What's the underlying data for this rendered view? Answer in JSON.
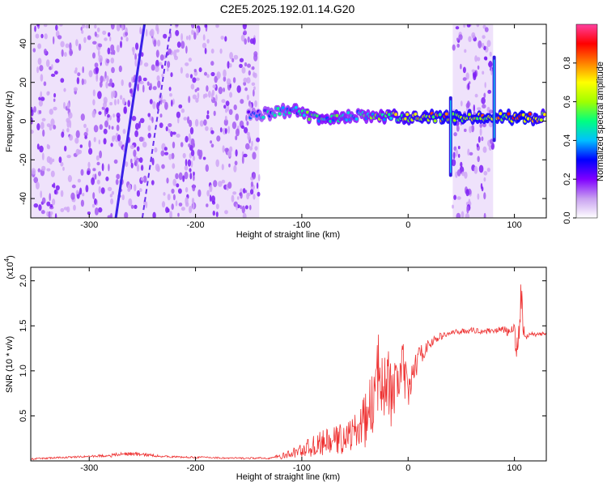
{
  "figure_title": "C2E5.2025.192.01.14.G20",
  "chart_data": [
    {
      "type": "heatmap",
      "xlabel": "Height of straight line (km)",
      "ylabel": "Frequency (Hz)",
      "xlim": [
        -355,
        130
      ],
      "ylim": [
        -50,
        50
      ],
      "xticks": [
        -300,
        -200,
        -100,
        0,
        100
      ],
      "xtick_labels": [
        "-300",
        "-200",
        "-100",
        "0",
        "100"
      ],
      "yticks": [
        -40,
        -20,
        0,
        20,
        40
      ],
      "ytick_labels": [
        "-40",
        "-20",
        "0",
        "20",
        "40"
      ],
      "colorbar": {
        "label": "Normalized spectral amplitude",
        "range": [
          0,
          1
        ],
        "ticks": [
          0.0,
          0.2,
          0.4,
          0.6,
          0.8
        ],
        "tick_labels": [
          "0.0",
          "0.2",
          "0.4",
          "0.6",
          "0.8"
        ],
        "colors": [
          "#ffffff",
          "#c8a0f0",
          "#8000ff",
          "#0000ff",
          "#00c0ff",
          "#00ff80",
          "#a0ff00",
          "#ffff00",
          "#ff8000",
          "#ff0000",
          "#ff40a0"
        ]
      },
      "noise_regions": [
        {
          "x_from": -355,
          "x_to": -140,
          "level": 0.12
        },
        {
          "x_from": 42,
          "x_to": 80,
          "level": 0.12
        }
      ],
      "signal_track": [
        {
          "x": -150,
          "f": 3,
          "amp": 0.35
        },
        {
          "x": -130,
          "f": 4,
          "amp": 0.45
        },
        {
          "x": -110,
          "f": 6,
          "amp": 0.5
        },
        {
          "x": -90,
          "f": 2,
          "amp": 0.55
        },
        {
          "x": -70,
          "f": 1,
          "amp": 0.55
        },
        {
          "x": -50,
          "f": 3,
          "amp": 0.5
        },
        {
          "x": -30,
          "f": 3,
          "amp": 0.55
        },
        {
          "x": -10,
          "f": 2,
          "amp": 0.7
        },
        {
          "x": 10,
          "f": 2,
          "amp": 0.75
        },
        {
          "x": 30,
          "f": 2,
          "amp": 0.8
        },
        {
          "x": 90,
          "f": 2,
          "amp": 0.8
        },
        {
          "x": 110,
          "f": 2,
          "amp": 0.85
        },
        {
          "x": 130,
          "f": 2,
          "amp": 0.7
        }
      ],
      "diagonal_streaks": [
        {
          "x1": -275,
          "f1": -50,
          "x2": -248,
          "f2": 50,
          "amp": 0.3
        }
      ],
      "vertical_spikes": [
        {
          "x": 40,
          "f_from": -28,
          "f_to": 12
        },
        {
          "x": 81,
          "f_from": -10,
          "f_to": 33
        }
      ]
    },
    {
      "type": "line",
      "xlabel": "Height of straight line (km)",
      "ylabel": "SNR (10 * v/v)",
      "y_multiplier": "(x10",
      "y_multiplier_exp": "4",
      "y_multiplier_close": ")",
      "xlim": [
        -355,
        130
      ],
      "ylim": [
        0,
        2.15
      ],
      "xticks": [
        -300,
        -200,
        -100,
        0,
        100
      ],
      "xtick_labels": [
        "-300",
        "-200",
        "-100",
        "0",
        "100"
      ],
      "yticks": [
        0.5,
        1.0,
        1.5,
        2.0
      ],
      "ytick_labels": [
        "0.5",
        "1.0",
        "1.5",
        "2.0"
      ],
      "color": "#ee3333",
      "series": [
        {
          "x": [
            -355,
            -340,
            -320,
            -300,
            -280,
            -265,
            -250,
            -230,
            -210,
            -190,
            -170,
            -150,
            -130,
            -115,
            -100,
            -90,
            -80,
            -70,
            -60,
            -50,
            -40,
            -35,
            -30,
            -25,
            -20,
            -15,
            -10,
            -5,
            0,
            5,
            10,
            20,
            30,
            40,
            50,
            60,
            70,
            80,
            90,
            95,
            100,
            103,
            106,
            108,
            110,
            112,
            115,
            120,
            125,
            130
          ],
          "y": [
            0.02,
            0.03,
            0.04,
            0.05,
            0.06,
            0.08,
            0.07,
            0.05,
            0.04,
            0.04,
            0.03,
            0.03,
            0.03,
            0.06,
            0.12,
            0.16,
            0.2,
            0.22,
            0.26,
            0.32,
            0.45,
            0.6,
            0.8,
            1.1,
            0.95,
            0.65,
            0.9,
            1.05,
            0.7,
            1.0,
            1.15,
            1.3,
            1.38,
            1.42,
            1.44,
            1.45,
            1.44,
            1.45,
            1.46,
            1.42,
            1.45,
            1.2,
            1.9,
            1.5,
            1.42,
            1.38,
            1.42,
            1.4,
            1.41,
            1.41
          ],
          "jitter": [
            0.01,
            0.01,
            0.01,
            0.01,
            0.02,
            0.02,
            0.02,
            0.01,
            0.01,
            0.01,
            0.01,
            0.01,
            0.01,
            0.04,
            0.08,
            0.12,
            0.14,
            0.16,
            0.18,
            0.2,
            0.3,
            0.35,
            0.45,
            0.55,
            0.5,
            0.35,
            0.3,
            0.3,
            0.2,
            0.18,
            0.12,
            0.06,
            0.04,
            0.03,
            0.03,
            0.03,
            0.03,
            0.03,
            0.04,
            0.05,
            0.08,
            0.3,
            0.25,
            0.15,
            0.06,
            0.03,
            0.02,
            0.02,
            0.02,
            0.02
          ]
        }
      ]
    }
  ]
}
